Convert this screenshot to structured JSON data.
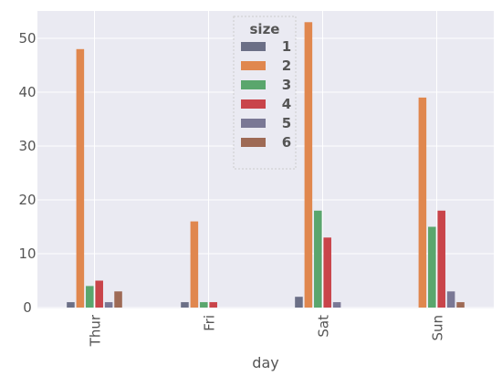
{
  "chart_data": {
    "type": "bar",
    "xlabel": "day",
    "ylabel": "",
    "ylim": [
      0,
      55
    ],
    "yticks": [
      0,
      10,
      20,
      30,
      40,
      50
    ],
    "categories": [
      "Thur",
      "Fri",
      "Sat",
      "Sun"
    ],
    "grid": true,
    "legend": {
      "title": "size",
      "placement": "upper-center"
    },
    "series": [
      {
        "name": "1",
        "color": "#6b6f86",
        "values": [
          1,
          1,
          2,
          0
        ]
      },
      {
        "name": "2",
        "color": "#e0874e",
        "values": [
          48,
          16,
          53,
          39
        ]
      },
      {
        "name": "3",
        "color": "#5aa66d",
        "values": [
          4,
          1,
          18,
          15
        ]
      },
      {
        "name": "4",
        "color": "#c9444a",
        "values": [
          5,
          1,
          13,
          18
        ]
      },
      {
        "name": "5",
        "color": "#7a7895",
        "values": [
          1,
          0,
          1,
          3
        ]
      },
      {
        "name": "6",
        "color": "#9e6a55",
        "values": [
          3,
          0,
          0,
          1
        ]
      }
    ]
  }
}
